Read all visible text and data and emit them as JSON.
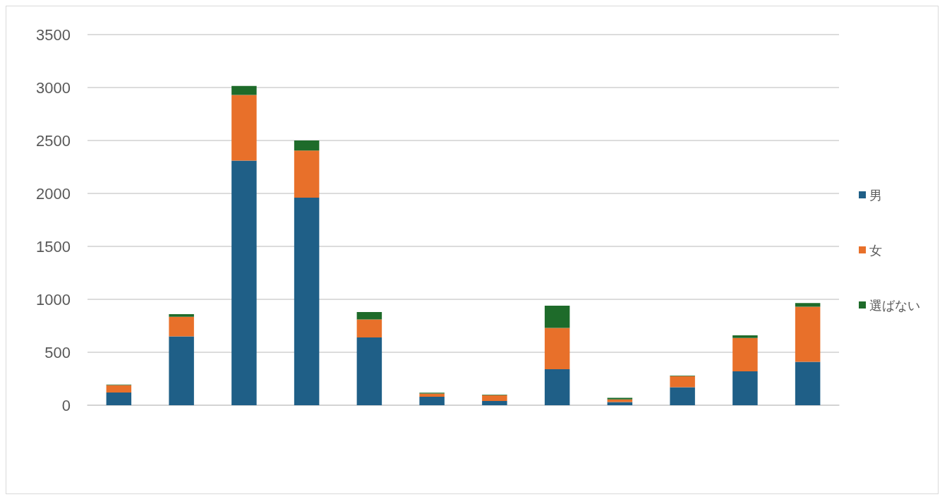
{
  "chart_data": {
    "type": "bar",
    "stacked": true,
    "categories": [
      null,
      null,
      null,
      null,
      null,
      null,
      null,
      null,
      null,
      null,
      null,
      null
    ],
    "series": [
      {
        "name": "男",
        "color": "#1f5f87",
        "values": [
          120,
          650,
          2310,
          1960,
          640,
          80,
          40,
          340,
          30,
          170,
          320,
          410
        ]
      },
      {
        "name": "女",
        "color": "#e8702a",
        "values": [
          70,
          185,
          620,
          445,
          170,
          30,
          55,
          390,
          25,
          105,
          315,
          520
        ]
      },
      {
        "name": "選ばない",
        "color": "#1e6b2a",
        "values": [
          5,
          25,
          85,
          95,
          70,
          8,
          5,
          210,
          15,
          5,
          25,
          35
        ]
      }
    ],
    "ylim": [
      0,
      3500
    ],
    "yticks": [
      0,
      500,
      1000,
      1500,
      2000,
      2500,
      3000,
      3500
    ],
    "grid": "y",
    "legend": "right"
  }
}
